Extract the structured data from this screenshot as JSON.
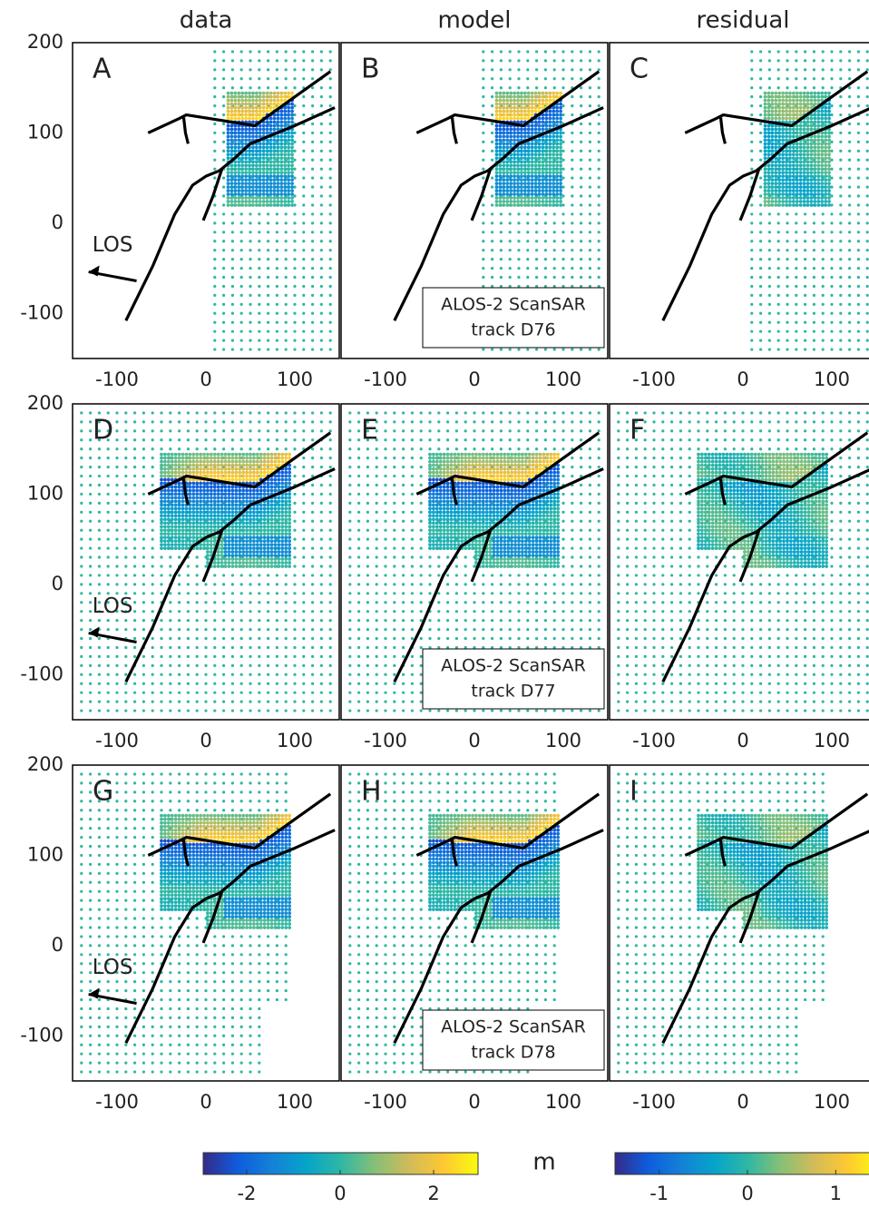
{
  "chart_data": {
    "type": "map-grid",
    "xlim": [
      -150,
      150
    ],
    "ylim": [
      -150,
      200
    ],
    "xticks": [
      -100,
      0,
      100
    ],
    "yticks": [
      -100,
      0,
      100,
      200
    ],
    "faults": [
      {
        "x": [
          -90,
          -60,
          -35,
          -15,
          0,
          15,
          30,
          50,
          80,
          100,
          145
        ],
        "y": [
          -108,
          -48,
          10,
          42,
          52,
          58,
          70,
          88,
          100,
          108,
          128
        ]
      },
      {
        "x": [
          -65,
          -30,
          -22,
          55,
          100,
          140
        ],
        "y": [
          100,
          116,
          120,
          108,
          140,
          168
        ]
      },
      {
        "x": [
          -25,
          -23,
          -20
        ],
        "y": [
          117,
          100,
          88
        ]
      },
      {
        "x": [
          -3,
          8,
          18
        ],
        "y": [
          3,
          30,
          60
        ]
      }
    ],
    "los": {
      "label": "LOS",
      "x": [
        -78,
        -132
      ],
      "y": [
        -64,
        -54
      ],
      "label_x": -105,
      "label_y": -25
    },
    "panels": [
      {
        "label": "A",
        "title": "data"
      },
      {
        "label": "B",
        "title": "model",
        "box": [
          "ALOS-2 ScanSAR",
          "track D76"
        ]
      },
      {
        "label": "C",
        "title": "residual"
      },
      {
        "label": "D"
      },
      {
        "label": "E",
        "box": [
          "ALOS-2 ScanSAR",
          "track D77"
        ]
      },
      {
        "label": "F"
      },
      {
        "label": "G"
      },
      {
        "label": "H",
        "box": [
          "ALOS-2 ScanSAR",
          "track D78"
        ]
      },
      {
        "label": "I"
      }
    ],
    "unit": "m",
    "colormap": [
      "#352a87",
      "#0f5cdd",
      "#1481d6",
      "#06a4ca",
      "#2eb7a4",
      "#87bf77",
      "#d1bb59",
      "#fec832",
      "#f9fb0e"
    ],
    "colorbars": [
      {
        "lim": [
          -2.93,
          2.95
        ],
        "ticks": [
          -2,
          0,
          2
        ]
      },
      {
        "lim": [
          -1.5,
          1.5
        ],
        "ticks": [
          -1,
          0,
          1
        ]
      }
    ]
  }
}
